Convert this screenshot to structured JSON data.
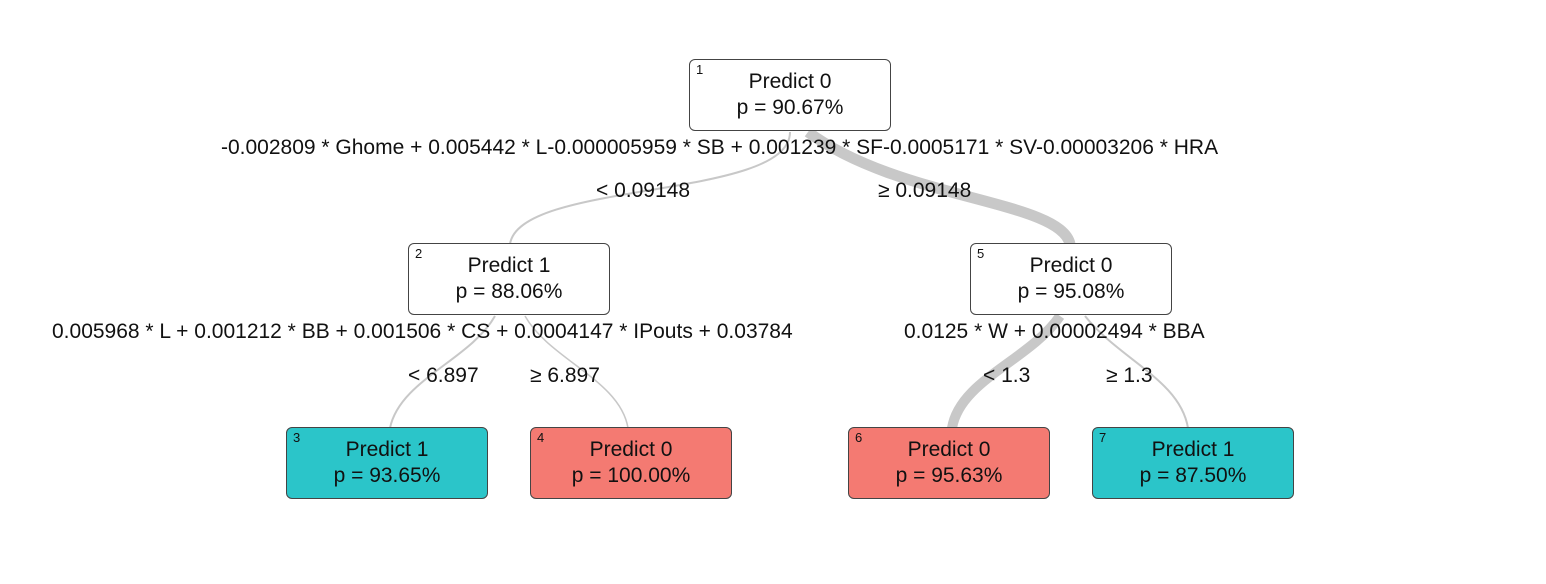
{
  "tree": {
    "nodes": [
      {
        "id": "1",
        "prediction": "Predict 0",
        "probability": "p = 90.67%",
        "class": "inner"
      },
      {
        "id": "2",
        "prediction": "Predict 1",
        "probability": "p = 88.06%",
        "class": "inner"
      },
      {
        "id": "5",
        "prediction": "Predict 0",
        "probability": "p = 95.08%",
        "class": "inner"
      },
      {
        "id": "3",
        "prediction": "Predict 1",
        "probability": "p = 93.65%",
        "class": "leaf-1"
      },
      {
        "id": "4",
        "prediction": "Predict 0",
        "probability": "p = 100.00%",
        "class": "leaf-0"
      },
      {
        "id": "6",
        "prediction": "Predict 0",
        "probability": "p = 95.63%",
        "class": "leaf-0"
      },
      {
        "id": "7",
        "prediction": "Predict 1",
        "probability": "p = 87.50%",
        "class": "leaf-1"
      }
    ],
    "splits": {
      "node1": "-0.002809 * Ghome + 0.005442 * L-0.000005959 * SB + 0.001239 * SF-0.0005171 * SV-0.00003206 * HRA",
      "node2": "0.005968 * L + 0.001212 * BB + 0.001506 * CS + 0.0004147 * IPouts + 0.03784",
      "node5": "0.0125 * W + 0.00002494 * BBA"
    },
    "edges": {
      "e1_2": "< 0.09148",
      "e1_5": "≥ 0.09148",
      "e2_3": "< 6.897",
      "e2_4": "≥ 6.897",
      "e5_6": "< 1.3",
      "e5_7": "≥ 1.3"
    },
    "colors": {
      "class0": "#f47a72",
      "class1": "#2bc5c9",
      "edge": "#c8c8c8"
    }
  }
}
